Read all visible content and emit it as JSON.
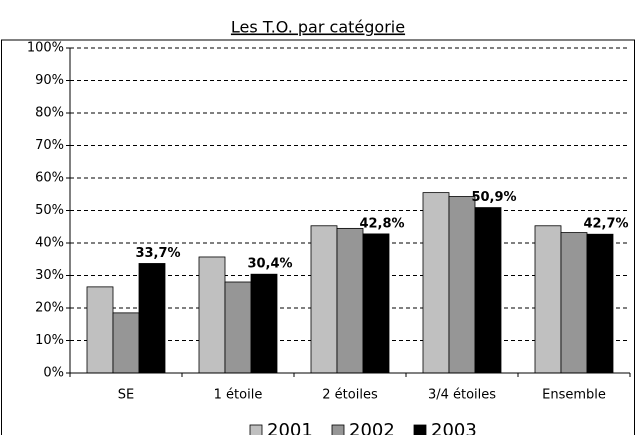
{
  "chart_data": {
    "type": "bar",
    "title": "Les T.O. par catégorie",
    "categories": [
      "SE",
      "1 étoile",
      "2 étoiles",
      "3/4 étoiles",
      "Ensemble"
    ],
    "series": [
      {
        "name": "2001",
        "color": "#c0c0c0",
        "values": [
          26.5,
          35.7,
          45.3,
          55.5,
          45.3
        ]
      },
      {
        "name": "2002",
        "color": "#969696",
        "values": [
          18.5,
          28,
          44.5,
          54.3,
          43.2
        ]
      },
      {
        "name": "2003",
        "color": "#000000",
        "values": [
          33.7,
          30.4,
          42.8,
          50.9,
          42.7
        ],
        "value_labels": [
          "33,7%",
          "30,4%",
          "42,8%",
          "50,9%",
          "42,7%"
        ]
      }
    ],
    "ylim": [
      0,
      100
    ],
    "yticks": [
      {
        "value": 0,
        "label": "0%"
      },
      {
        "value": 10,
        "label": "10%"
      },
      {
        "value": 20,
        "label": "20%"
      },
      {
        "value": 30,
        "label": "30%"
      },
      {
        "value": 40,
        "label": "40%"
      },
      {
        "value": 50,
        "label": "50%"
      },
      {
        "value": 60,
        "label": "60%"
      },
      {
        "value": 70,
        "label": "70%"
      },
      {
        "value": 80,
        "label": "80%"
      },
      {
        "value": 90,
        "label": "90%"
      },
      {
        "value": 100,
        "label": "100%"
      }
    ],
    "grid": true,
    "legend": "bottom"
  }
}
